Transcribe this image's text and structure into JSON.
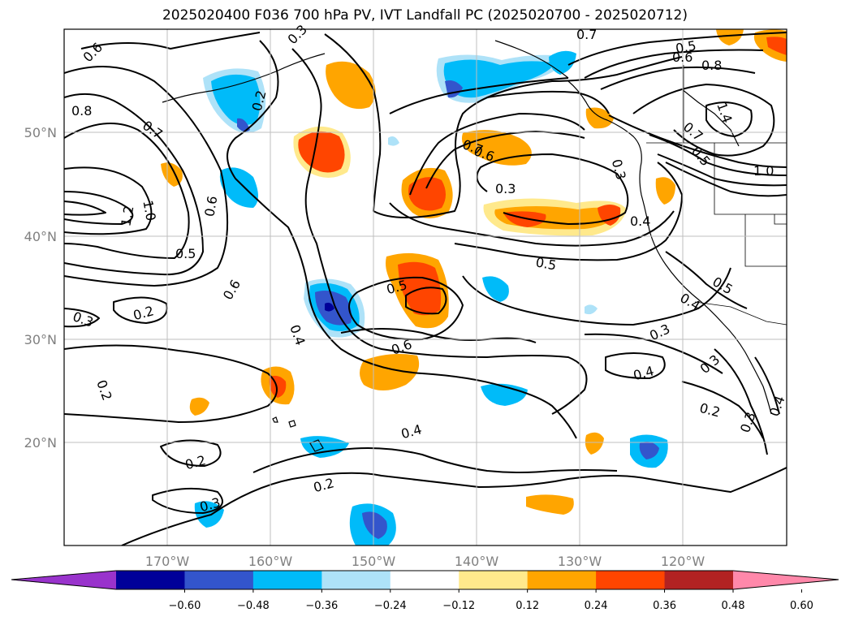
{
  "title": "2025020400 F036 700 hPa PV, IVT Landfall PC (2025020700 - 2025020712)",
  "lat_labels": [
    "50°N",
    "40°N",
    "30°N",
    "20°N"
  ],
  "lon_labels": [
    "170°W",
    "160°W",
    "150°W",
    "140°W",
    "130°W",
    "120°W"
  ],
  "contour_labels": [
    "0.6",
    "0.8",
    "0.7",
    "1.2",
    "1.0",
    "0.6",
    "0.5",
    "0.3",
    "0.2",
    "0.6",
    "0.4",
    "0.2",
    "0.2",
    "0.3",
    "0.2",
    "0.3",
    "0.2",
    "0.5",
    "0.6",
    "0.4",
    "0.3",
    "0.7",
    "0.6",
    "0.3",
    "0.4",
    "0.5",
    "0.7",
    "0.5",
    "0.6",
    "0.8",
    "1.4",
    "0.7",
    "0.5",
    "1.0",
    "0.5",
    "0.4",
    "0.3",
    "0.3",
    "0.4",
    "0.2",
    "0.3",
    "0.4"
  ],
  "colorbar": {
    "ticks": [
      "−0.60",
      "−0.48",
      "−0.36",
      "−0.24",
      "−0.12",
      "0.12",
      "0.24",
      "0.36",
      "0.48",
      "0.60"
    ],
    "colors": [
      "#9933cc",
      "#000099",
      "#3355cc",
      "#00bbf9",
      "#aee2f8",
      "#ffffff",
      "#ffe98c",
      "#ffa500",
      "#ff4500",
      "#b22222",
      "#ff88aa"
    ]
  }
}
